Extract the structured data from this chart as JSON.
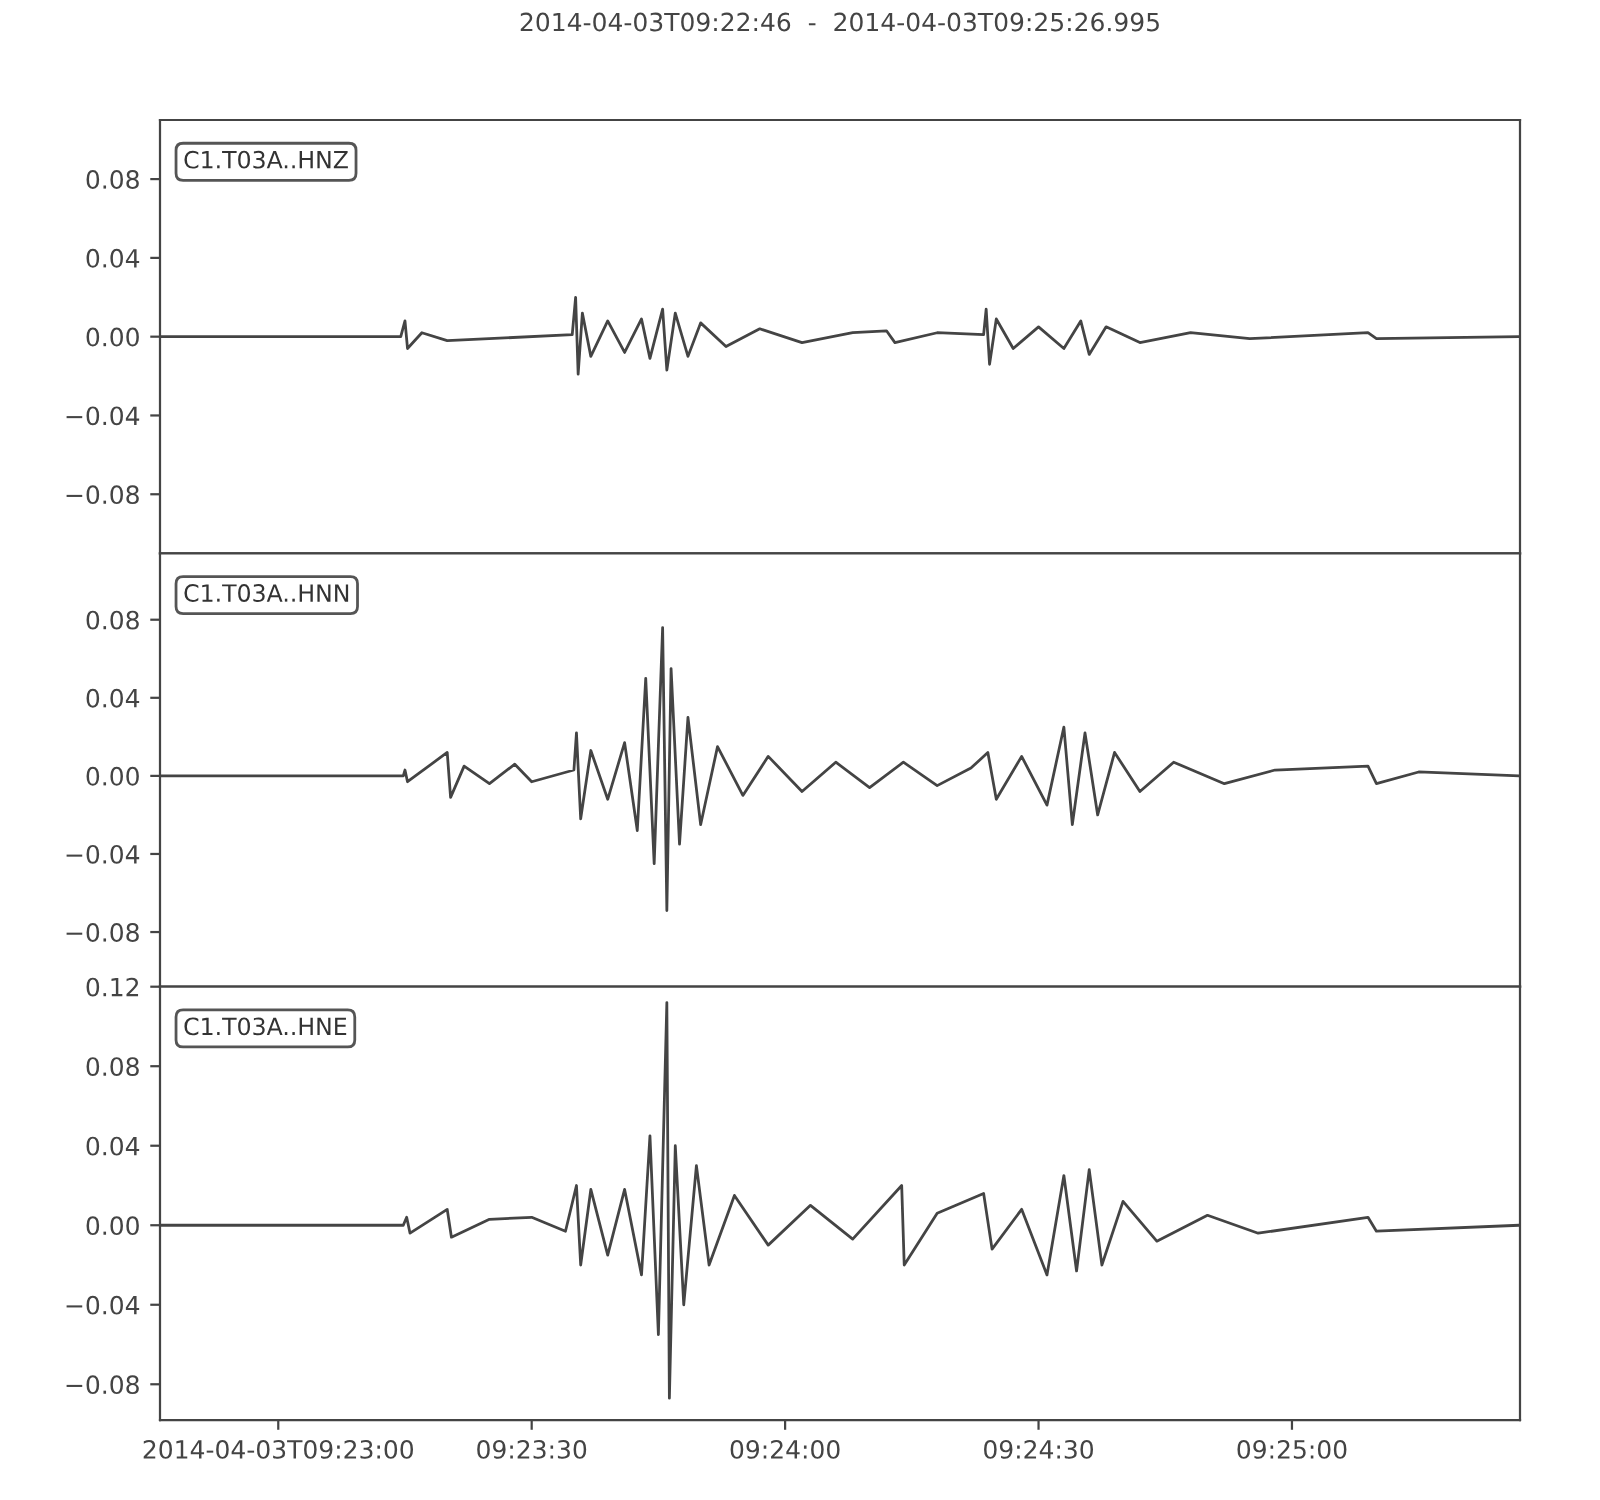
{
  "chart_data": [
    {
      "type": "line",
      "title": "2014-04-03T09:22:46  -  2014-04-03T09:25:26.995",
      "annotations": [
        "C1.T03A..HNZ"
      ],
      "tick_labels": "y",
      "marker": "none",
      "line_style": "solid",
      "x": [
        "2014-04-03T09:22:46",
        "2014-04-03T09:23:14.5",
        "2014-04-03T09:23:15",
        "2014-04-03T09:23:15.3",
        "2014-04-03T09:23:17",
        "2014-04-03T09:23:20",
        "2014-04-03T09:23:34.8",
        "2014-04-03T09:23:35.2",
        "2014-04-03T09:23:35.5",
        "2014-04-03T09:23:36",
        "2014-04-03T09:23:37",
        "2014-04-03T09:23:39",
        "2014-04-03T09:23:41",
        "2014-04-03T09:23:43",
        "2014-04-03T09:23:44",
        "2014-04-03T09:23:45.5",
        "2014-04-03T09:23:46",
        "2014-04-03T09:23:47",
        "2014-04-03T09:23:48.5",
        "2014-04-03T09:23:50",
        "2014-04-03T09:23:53",
        "2014-04-03T09:23:57",
        "2014-04-03T09:24:02",
        "2014-04-03T09:24:08",
        "2014-04-03T09:24:12",
        "2014-04-03T09:24:13",
        "2014-04-03T09:24:18",
        "2014-04-03T09:24:23.5",
        "2014-04-03T09:24:23.8",
        "2014-04-03T09:24:24.2",
        "2014-04-03T09:24:25",
        "2014-04-03T09:24:27",
        "2014-04-03T09:24:30",
        "2014-04-03T09:24:33",
        "2014-04-03T09:24:35",
        "2014-04-03T09:24:36",
        "2014-04-03T09:24:38",
        "2014-04-03T09:24:42",
        "2014-04-03T09:24:48",
        "2014-04-03T09:24:55",
        "2014-04-03T09:25:09",
        "2014-04-03T09:25:10",
        "2014-04-03T09:25:26.9"
      ],
      "series": [
        {
          "color": "#444444",
          "values": [
            0.0,
            0.0,
            0.008,
            -0.006,
            0.002,
            -0.002,
            0.001,
            0.02,
            -0.019,
            0.012,
            -0.01,
            0.008,
            -0.008,
            0.009,
            -0.011,
            0.014,
            -0.017,
            0.012,
            -0.01,
            0.007,
            -0.005,
            0.004,
            -0.003,
            0.002,
            0.003,
            -0.003,
            0.002,
            0.001,
            0.014,
            -0.014,
            0.009,
            -0.006,
            0.005,
            -0.006,
            0.008,
            -0.009,
            0.005,
            -0.003,
            0.002,
            -0.001,
            0.002,
            -0.001,
            0.0
          ]
        }
      ],
      "xlim": [
        "2014-04-03T09:22:46",
        "2014-04-03T09:25:26.995"
      ],
      "ylim": [
        -0.11,
        0.11
      ],
      "yticks": [
        {
          "value": -0.08,
          "label": "−0.08"
        },
        {
          "value": -0.04,
          "label": "−0.04"
        },
        {
          "value": 0,
          "label": "0.00"
        },
        {
          "value": 0.04,
          "label": "0.04"
        },
        {
          "value": 0.08,
          "label": "0.08"
        }
      ]
    },
    {
      "type": "line",
      "annotations": [
        "C1.T03A..HNN"
      ],
      "tick_labels": "y",
      "marker": "none",
      "line_style": "solid",
      "x": [
        "2014-04-03T09:22:46",
        "2014-04-03T09:23:14.8",
        "2014-04-03T09:23:15",
        "2014-04-03T09:23:15.3",
        "2014-04-03T09:23:20",
        "2014-04-03T09:23:20.4",
        "2014-04-03T09:23:22",
        "2014-04-03T09:23:25",
        "2014-04-03T09:23:28",
        "2014-04-03T09:23:30",
        "2014-04-03T09:23:35",
        "2014-04-03T09:23:35.3",
        "2014-04-03T09:23:35.8",
        "2014-04-03T09:23:37",
        "2014-04-03T09:23:39",
        "2014-04-03T09:23:41",
        "2014-04-03T09:23:42.5",
        "2014-04-03T09:23:43.5",
        "2014-04-03T09:23:44.5",
        "2014-04-03T09:23:45.5",
        "2014-04-03T09:23:46",
        "2014-04-03T09:23:46.5",
        "2014-04-03T09:23:47.5",
        "2014-04-03T09:23:48.5",
        "2014-04-03T09:23:50",
        "2014-04-03T09:23:52",
        "2014-04-03T09:23:55",
        "2014-04-03T09:23:58",
        "2014-04-03T09:24:02",
        "2014-04-03T09:24:06",
        "2014-04-03T09:24:10",
        "2014-04-03T09:24:14",
        "2014-04-03T09:24:18",
        "2014-04-03T09:24:22",
        "2014-04-03T09:24:24",
        "2014-04-03T09:24:25",
        "2014-04-03T09:24:28",
        "2014-04-03T09:24:31",
        "2014-04-03T09:24:33",
        "2014-04-03T09:24:34",
        "2014-04-03T09:24:35.5",
        "2014-04-03T09:24:37",
        "2014-04-03T09:24:39",
        "2014-04-03T09:24:42",
        "2014-04-03T09:24:46",
        "2014-04-03T09:24:52",
        "2014-04-03T09:24:58",
        "2014-04-03T09:25:09",
        "2014-04-03T09:25:10",
        "2014-04-03T09:25:15",
        "2014-04-03T09:25:26.9"
      ],
      "series": [
        {
          "color": "#444444",
          "values": [
            0.0,
            0.0,
            0.003,
            -0.003,
            0.012,
            -0.011,
            0.005,
            -0.004,
            0.006,
            -0.003,
            0.003,
            0.022,
            -0.022,
            0.013,
            -0.012,
            0.017,
            -0.028,
            0.05,
            -0.045,
            0.076,
            -0.069,
            0.055,
            -0.035,
            0.03,
            -0.025,
            0.015,
            -0.01,
            0.01,
            -0.008,
            0.007,
            -0.006,
            0.007,
            -0.005,
            0.004,
            0.012,
            -0.012,
            0.01,
            -0.015,
            0.025,
            -0.025,
            0.022,
            -0.02,
            0.012,
            -0.008,
            0.007,
            -0.004,
            0.003,
            0.005,
            -0.004,
            0.002,
            0.0
          ]
        }
      ],
      "xlim": [
        "2014-04-03T09:22:46",
        "2014-04-03T09:25:26.995"
      ],
      "ylim": [
        -0.108,
        0.114
      ],
      "yticks": [
        {
          "value": -0.08,
          "label": "−0.08"
        },
        {
          "value": -0.04,
          "label": "−0.04"
        },
        {
          "value": 0,
          "label": "0.00"
        },
        {
          "value": 0.04,
          "label": "0.04"
        },
        {
          "value": 0.08,
          "label": "0.08"
        }
      ]
    },
    {
      "type": "line",
      "annotations": [
        "C1.T03A..HNE"
      ],
      "marker": "none",
      "line_style": "solid",
      "x": [
        "2014-04-03T09:22:46",
        "2014-04-03T09:23:14.8",
        "2014-04-03T09:23:15.2",
        "2014-04-03T09:23:15.6",
        "2014-04-03T09:23:20",
        "2014-04-03T09:23:20.5",
        "2014-04-03T09:23:25",
        "2014-04-03T09:23:30",
        "2014-04-03T09:23:34",
        "2014-04-03T09:23:35.3",
        "2014-04-03T09:23:35.8",
        "2014-04-03T09:23:37",
        "2014-04-03T09:23:39",
        "2014-04-03T09:23:41",
        "2014-04-03T09:23:43",
        "2014-04-03T09:23:44",
        "2014-04-03T09:23:45",
        "2014-04-03T09:23:46",
        "2014-04-03T09:23:46.3",
        "2014-04-03T09:23:47",
        "2014-04-03T09:23:48",
        "2014-04-03T09:23:49.5",
        "2014-04-03T09:23:51",
        "2014-04-03T09:23:54",
        "2014-04-03T09:23:58",
        "2014-04-03T09:24:03",
        "2014-04-03T09:24:08",
        "2014-04-03T09:24:13.8",
        "2014-04-03T09:24:14.1",
        "2014-04-03T09:24:18",
        "2014-04-03T09:24:23.5",
        "2014-04-03T09:24:24.5",
        "2014-04-03T09:24:28",
        "2014-04-03T09:24:31",
        "2014-04-03T09:24:33",
        "2014-04-03T09:24:34.5",
        "2014-04-03T09:24:36",
        "2014-04-03T09:24:37.5",
        "2014-04-03T09:24:40",
        "2014-04-03T09:24:44",
        "2014-04-03T09:24:50",
        "2014-04-03T09:24:56",
        "2014-04-03T09:25:09",
        "2014-04-03T09:25:10",
        "2014-04-03T09:25:26.9"
      ],
      "series": [
        {
          "color": "#444444",
          "values": [
            0.0,
            0.0,
            0.004,
            -0.004,
            0.008,
            -0.006,
            0.003,
            0.004,
            -0.003,
            0.02,
            -0.02,
            0.018,
            -0.015,
            0.018,
            -0.025,
            0.045,
            -0.055,
            0.112,
            -0.087,
            0.04,
            -0.04,
            0.03,
            -0.02,
            0.015,
            -0.01,
            0.01,
            -0.007,
            0.02,
            -0.02,
            0.006,
            0.016,
            -0.012,
            0.008,
            -0.025,
            0.025,
            -0.023,
            0.028,
            -0.02,
            0.012,
            -0.008,
            0.005,
            -0.004,
            0.004,
            -0.003,
            0.0
          ]
        }
      ],
      "xlim": [
        "2014-04-03T09:22:46",
        "2014-04-03T09:25:26.995"
      ],
      "xticks": [
        {
          "value": "2014-04-03T09:23:00",
          "label": "2014-04-03T09:23:00"
        },
        {
          "value": "2014-04-03T09:23:30",
          "label": "09:23:30"
        },
        {
          "value": "2014-04-03T09:24:00",
          "label": "09:24:00"
        },
        {
          "value": "2014-04-03T09:24:30",
          "label": "09:24:30"
        },
        {
          "value": "2014-04-03T09:25:00",
          "label": "09:25:00"
        }
      ],
      "ylim": [
        -0.098,
        0.12
      ],
      "yticks": [
        {
          "value": -0.08,
          "label": "−0.08"
        },
        {
          "value": -0.04,
          "label": "−0.04"
        },
        {
          "value": 0,
          "label": "0.00"
        },
        {
          "value": 0.04,
          "label": "0.04"
        },
        {
          "value": 0.08,
          "label": "0.08"
        },
        {
          "value": 0.12,
          "label": "0.12"
        }
      ]
    }
  ]
}
